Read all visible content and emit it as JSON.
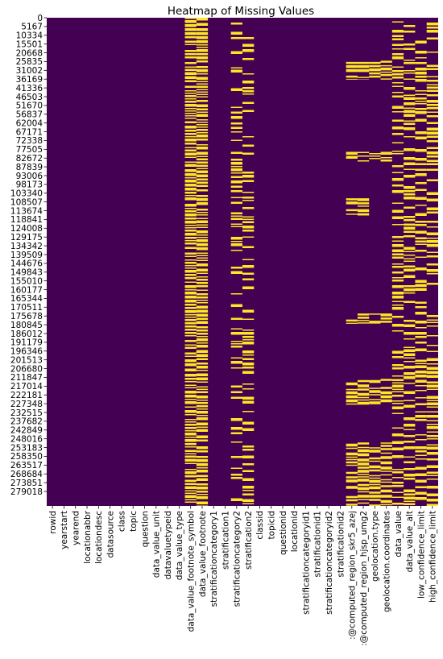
{
  "chart_data": {
    "type": "heatmap",
    "title": "Heatmap of Missing Values",
    "xlabel": "",
    "ylabel": "",
    "colors": {
      "present": "#440154",
      "missing": "#fde725"
    },
    "y_range": [
      0,
      283900
    ],
    "y_tick_labels": [
      "0",
      "5167",
      "10334",
      "15501",
      "20668",
      "25835",
      "31002",
      "36169",
      "41336",
      "46503",
      "51670",
      "56837",
      "62004",
      "67171",
      "72338",
      "77505",
      "82672",
      "87839",
      "93006",
      "98173",
      "103340",
      "108507",
      "113674",
      "118841",
      "124008",
      "129175",
      "134342",
      "139509",
      "144676",
      "149843",
      "155010",
      "160177",
      "165344",
      "170511",
      "175678",
      "180845",
      "186012",
      "191179",
      "196346",
      "201513",
      "206680",
      "211847",
      "217014",
      "222181",
      "227348",
      "232515",
      "237682",
      "242849",
      "248016",
      "253183",
      "258350",
      "263517",
      "268684",
      "273851",
      "279018"
    ],
    "columns": [
      "rowid",
      "yearstart",
      "yearend",
      "locationabbr",
      "locationdesc",
      "datasource",
      "class",
      "topic",
      "question",
      "data_value_unit",
      "datavaluetypeid",
      "data_value_type",
      "data_value_footnote_symbol",
      "data_value_footnote",
      "stratificationcategory1",
      "stratification1",
      "stratificationcategory2",
      "stratification2",
      "classid",
      "topicid",
      "questionid",
      "locationid",
      "stratificationcategoryid1",
      "stratificationid1",
      "stratificationcategoryid2",
      "stratificationid2",
      ":@computed_region_skr5_azej",
      ":@computed_region_hjsp_umg2",
      "geolocation.type",
      "geolocation.coordinates",
      "data_value",
      "data_value_alt",
      "low_confidence_limit",
      "high_confidence_limit"
    ],
    "missing_bands": [
      {
        "column": "data_value_footnote_symbol",
        "rows": [
          [
            0,
            283900
          ]
        ],
        "density": 0.78
      },
      {
        "column": "data_value_footnote",
        "rows": [
          [
            0,
            283900
          ]
        ],
        "density": 0.78
      },
      {
        "column": "stratificationcategory2",
        "rows": [
          [
            0,
            283900
          ]
        ],
        "density": 0.18
      },
      {
        "column": "stratification2",
        "rows": [
          [
            0,
            283900
          ]
        ],
        "density": 0.18
      },
      {
        "column": ":@computed_region_skr5_azej",
        "rows": [
          [
            25000,
            36000
          ],
          [
            78000,
            84000
          ],
          [
            105000,
            115000
          ],
          [
            172000,
            178000
          ],
          [
            210000,
            225000
          ],
          [
            247000,
            283900
          ]
        ],
        "density": 0.6
      },
      {
        "column": ":@computed_region_hjsp_umg2",
        "rows": [
          [
            25000,
            36000
          ],
          [
            78000,
            84000
          ],
          [
            105000,
            115000
          ],
          [
            172000,
            178000
          ],
          [
            210000,
            225000
          ],
          [
            247000,
            283900
          ]
        ],
        "density": 0.6
      },
      {
        "column": "geolocation.type",
        "rows": [
          [
            25000,
            36000
          ],
          [
            78000,
            84000
          ],
          [
            172000,
            178000
          ],
          [
            210000,
            225000
          ],
          [
            247000,
            283900
          ]
        ],
        "density": 0.6
      },
      {
        "column": "geolocation.coordinates",
        "rows": [
          [
            25000,
            36000
          ],
          [
            78000,
            84000
          ],
          [
            172000,
            178000
          ],
          [
            210000,
            225000
          ],
          [
            247000,
            283900
          ]
        ],
        "density": 0.6
      },
      {
        "column": "data_value",
        "rows": [
          [
            0,
            283900
          ]
        ],
        "density": 0.3
      },
      {
        "column": "data_value_alt",
        "rows": [
          [
            0,
            283900
          ]
        ],
        "density": 0.3
      },
      {
        "column": "low_confidence_limit",
        "rows": [
          [
            0,
            283900
          ]
        ],
        "density": 0.3
      },
      {
        "column": "high_confidence_limit",
        "rows": [
          [
            0,
            283900
          ]
        ],
        "density": 0.3
      }
    ]
  }
}
